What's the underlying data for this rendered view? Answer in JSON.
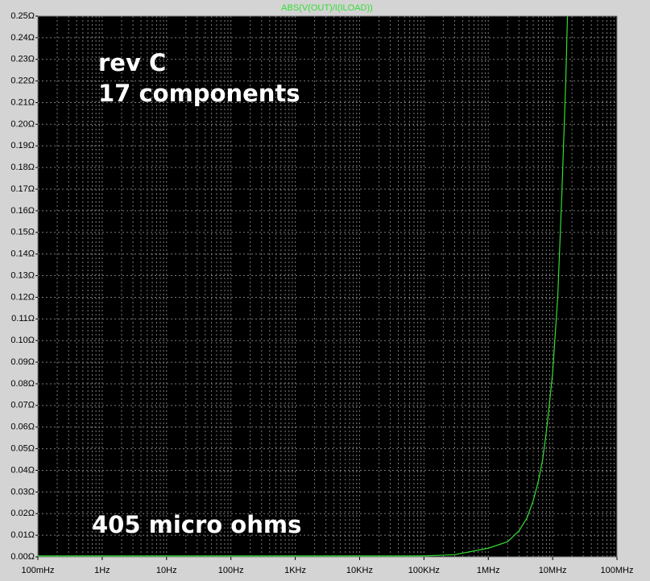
{
  "chart_data": {
    "type": "line",
    "title": "ABS(V(OUT)/I(ILOAD))",
    "annotations": [
      "rev C",
      "17 components",
      "405 micro ohms"
    ],
    "x": [
      0.1,
      1,
      10,
      100,
      1000,
      10000,
      100000,
      300000,
      1000000,
      2000000,
      3000000,
      4000000,
      5000000,
      6000000,
      7000000,
      8000000,
      9000000,
      10000000,
      12000000,
      14000000,
      16000000,
      17000000
    ],
    "series": [
      {
        "name": "ABS(V(OUT)/I(ILOAD))",
        "color": "#33dd33",
        "values": [
          0.000405,
          0.000405,
          0.000405,
          0.000405,
          0.000405,
          0.000405,
          0.000405,
          0.001,
          0.004,
          0.007,
          0.012,
          0.018,
          0.026,
          0.035,
          0.045,
          0.058,
          0.072,
          0.085,
          0.12,
          0.17,
          0.22,
          0.25
        ]
      }
    ],
    "xscale": "log",
    "xlim": [
      0.1,
      100000000
    ],
    "xticks": [
      {
        "value": 0.1,
        "label": "100mHz"
      },
      {
        "value": 1,
        "label": "1Hz"
      },
      {
        "value": 10,
        "label": "10Hz"
      },
      {
        "value": 100,
        "label": "100Hz"
      },
      {
        "value": 1000,
        "label": "1KHz"
      },
      {
        "value": 10000,
        "label": "10KHz"
      },
      {
        "value": 100000,
        "label": "100KHz"
      },
      {
        "value": 1000000,
        "label": "1MHz"
      },
      {
        "value": 10000000,
        "label": "10MHz"
      },
      {
        "value": 100000000,
        "label": "100MHz"
      }
    ],
    "ylim": [
      0,
      0.25
    ],
    "yticks": [
      {
        "value": 0,
        "label": "0.00Ω"
      },
      {
        "value": 0.01,
        "label": "0.01Ω"
      },
      {
        "value": 0.02,
        "label": "0.02Ω"
      },
      {
        "value": 0.03,
        "label": "0.03Ω"
      },
      {
        "value": 0.04,
        "label": "0.04Ω"
      },
      {
        "value": 0.05,
        "label": "0.05Ω"
      },
      {
        "value": 0.06,
        "label": "0.06Ω"
      },
      {
        "value": 0.07,
        "label": "0.07Ω"
      },
      {
        "value": 0.08,
        "label": "0.08Ω"
      },
      {
        "value": 0.09,
        "label": "0.09Ω"
      },
      {
        "value": 0.1,
        "label": "0.10Ω"
      },
      {
        "value": 0.11,
        "label": "0.11Ω"
      },
      {
        "value": 0.12,
        "label": "0.12Ω"
      },
      {
        "value": 0.13,
        "label": "0.13Ω"
      },
      {
        "value": 0.14,
        "label": "0.14Ω"
      },
      {
        "value": 0.15,
        "label": "0.15Ω"
      },
      {
        "value": 0.16,
        "label": "0.16Ω"
      },
      {
        "value": 0.17,
        "label": "0.17Ω"
      },
      {
        "value": 0.18,
        "label": "0.18Ω"
      },
      {
        "value": 0.19,
        "label": "0.19Ω"
      },
      {
        "value": 0.2,
        "label": "0.20Ω"
      },
      {
        "value": 0.21,
        "label": "0.21Ω"
      },
      {
        "value": 0.22,
        "label": "0.22Ω"
      },
      {
        "value": 0.23,
        "label": "0.23Ω"
      },
      {
        "value": 0.24,
        "label": "0.24Ω"
      },
      {
        "value": 0.25,
        "label": "0.25Ω"
      }
    ],
    "grid": true,
    "minor_grid": true
  }
}
